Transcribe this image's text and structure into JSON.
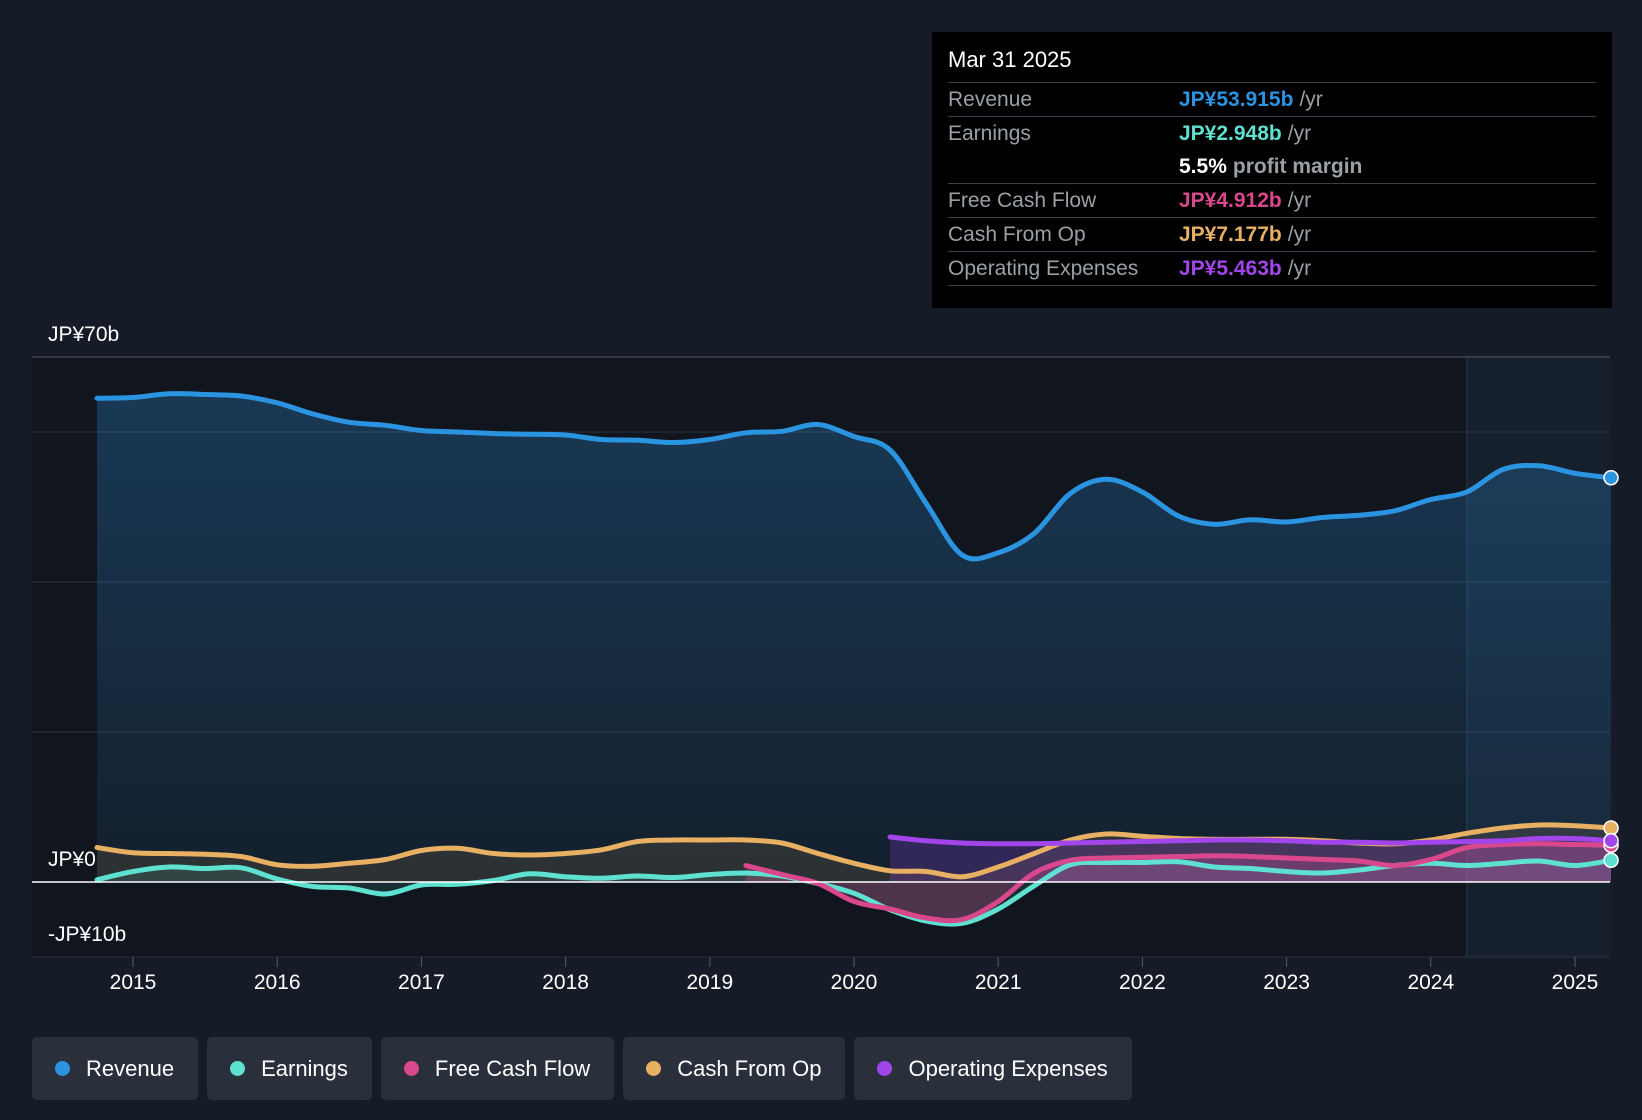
{
  "tooltip": {
    "date": "Mar 31 2025",
    "rows": [
      {
        "label": "Revenue",
        "value": "JP¥53.915b",
        "unit": "/yr",
        "color": "#2b94e1"
      },
      {
        "label": "Earnings",
        "value": "JP¥2.948b",
        "unit": "/yr",
        "color": "#5ee1d0"
      },
      {
        "label": "",
        "value": "5.5%",
        "unit": "profit margin",
        "color": "#ffffff"
      },
      {
        "label": "Free Cash Flow",
        "value": "JP¥4.912b",
        "unit": "/yr",
        "color": "#d9488c"
      },
      {
        "label": "Cash From Op",
        "value": "JP¥7.177b",
        "unit": "/yr",
        "color": "#e8b063"
      },
      {
        "label": "Operating Expenses",
        "value": "JP¥5.463b",
        "unit": "/yr",
        "color": "#a246ec"
      }
    ]
  },
  "legend": [
    {
      "label": "Revenue",
      "color": "#2b94e1"
    },
    {
      "label": "Earnings",
      "color": "#5ee1d0"
    },
    {
      "label": "Free Cash Flow",
      "color": "#d9488c"
    },
    {
      "label": "Cash From Op",
      "color": "#e8b063"
    },
    {
      "label": "Operating Expenses",
      "color": "#a246ec"
    }
  ],
  "chart_data": {
    "type": "line",
    "title": "",
    "xlabel": "",
    "ylabel": "",
    "ylim": [
      -10,
      70
    ],
    "xlim": [
      2014.75,
      2025.25
    ],
    "y_tick_labels": [
      {
        "value": 70,
        "label": "JP¥70b"
      },
      {
        "value": 0,
        "label": "JP¥0"
      },
      {
        "value": -10,
        "label": "-JP¥10b"
      }
    ],
    "x_ticks": [
      2015,
      2016,
      2017,
      2018,
      2019,
      2020,
      2021,
      2022,
      2023,
      2024,
      2025
    ],
    "x_tick_labels": [
      "2015",
      "2016",
      "2017",
      "2018",
      "2019",
      "2020",
      "2021",
      "2022",
      "2023",
      "2024",
      "2025"
    ],
    "highlight_from": 2024.25,
    "series": [
      {
        "name": "Revenue",
        "color": "#2b94e1",
        "fill": true,
        "x": [
          2014.75,
          2015.0,
          2015.25,
          2015.5,
          2015.75,
          2016.0,
          2016.25,
          2016.5,
          2016.75,
          2017.0,
          2017.25,
          2017.5,
          2017.75,
          2018.0,
          2018.25,
          2018.5,
          2018.75,
          2019.0,
          2019.25,
          2019.5,
          2019.75,
          2020.0,
          2020.25,
          2020.5,
          2020.75,
          2021.0,
          2021.25,
          2021.5,
          2021.75,
          2022.0,
          2022.25,
          2022.5,
          2022.75,
          2023.0,
          2023.25,
          2023.5,
          2023.75,
          2024.0,
          2024.25,
          2024.5,
          2024.75,
          2025.0,
          2025.25
        ],
        "values": [
          64.5,
          64.6,
          65.1,
          65.0,
          64.8,
          63.9,
          62.4,
          61.3,
          60.9,
          60.2,
          60.0,
          59.8,
          59.7,
          59.6,
          59.0,
          58.9,
          58.6,
          59.0,
          59.9,
          60.1,
          61.0,
          59.4,
          57.6,
          50.5,
          43.6,
          43.9,
          46.5,
          51.8,
          53.7,
          52.0,
          48.8,
          47.7,
          48.3,
          48.0,
          48.6,
          48.9,
          49.5,
          51.0,
          52.0,
          55.0,
          55.5,
          54.5,
          53.9
        ]
      },
      {
        "name": "Earnings",
        "color": "#5ee1d0",
        "fill": true,
        "x": [
          2014.75,
          2015.0,
          2015.25,
          2015.5,
          2015.75,
          2016.0,
          2016.25,
          2016.5,
          2016.75,
          2017.0,
          2017.25,
          2017.5,
          2017.75,
          2018.0,
          2018.25,
          2018.5,
          2018.75,
          2019.0,
          2019.25,
          2019.5,
          2019.75,
          2020.0,
          2020.25,
          2020.5,
          2020.75,
          2021.0,
          2021.25,
          2021.5,
          2021.75,
          2022.0,
          2022.25,
          2022.5,
          2022.75,
          2023.0,
          2023.25,
          2023.5,
          2023.75,
          2024.0,
          2024.25,
          2024.5,
          2024.75,
          2025.0,
          2025.25
        ],
        "values": [
          0.3,
          1.4,
          2.0,
          1.8,
          1.9,
          0.4,
          -0.6,
          -0.8,
          -1.6,
          -0.4,
          -0.3,
          0.2,
          1.1,
          0.7,
          0.5,
          0.8,
          0.6,
          1.0,
          1.2,
          0.8,
          -0.2,
          -1.5,
          -3.7,
          -5.2,
          -5.5,
          -3.6,
          -0.5,
          2.3,
          2.6,
          2.6,
          2.7,
          2.0,
          1.8,
          1.4,
          1.2,
          1.6,
          2.2,
          2.5,
          2.2,
          2.5,
          2.8,
          2.2,
          2.9
        ]
      },
      {
        "name": "Free Cash Flow",
        "color": "#d9488c",
        "fill": true,
        "x": [
          2019.25,
          2019.5,
          2019.75,
          2020.0,
          2020.25,
          2020.5,
          2020.75,
          2021.0,
          2021.25,
          2021.5,
          2021.75,
          2022.0,
          2022.25,
          2022.5,
          2022.75,
          2023.0,
          2023.25,
          2023.5,
          2023.75,
          2024.0,
          2024.25,
          2024.5,
          2024.75,
          2025.0,
          2025.25
        ],
        "values": [
          2.2,
          1.0,
          -0.2,
          -2.6,
          -3.6,
          -4.8,
          -5.0,
          -2.6,
          1.2,
          2.9,
          3.2,
          3.3,
          3.4,
          3.5,
          3.4,
          3.2,
          3.0,
          2.8,
          2.2,
          3.0,
          4.6,
          5.0,
          5.1,
          5.0,
          4.9
        ]
      },
      {
        "name": "Cash From Op",
        "color": "#e8b063",
        "fill": true,
        "x": [
          2014.75,
          2015.0,
          2015.25,
          2015.5,
          2015.75,
          2016.0,
          2016.25,
          2016.5,
          2016.75,
          2017.0,
          2017.25,
          2017.5,
          2017.75,
          2018.0,
          2018.25,
          2018.5,
          2018.75,
          2019.0,
          2019.25,
          2019.5,
          2019.75,
          2020.0,
          2020.25,
          2020.5,
          2020.75,
          2021.0,
          2021.25,
          2021.5,
          2021.75,
          2022.0,
          2022.25,
          2022.5,
          2022.75,
          2023.0,
          2023.25,
          2023.5,
          2023.75,
          2024.0,
          2024.25,
          2024.5,
          2024.75,
          2025.0,
          2025.25
        ],
        "values": [
          4.6,
          3.9,
          3.8,
          3.7,
          3.4,
          2.3,
          2.1,
          2.5,
          3.0,
          4.2,
          4.5,
          3.8,
          3.6,
          3.8,
          4.3,
          5.4,
          5.6,
          5.6,
          5.6,
          5.2,
          3.8,
          2.5,
          1.5,
          1.4,
          0.7,
          2.0,
          3.8,
          5.6,
          6.4,
          6.1,
          5.8,
          5.7,
          5.7,
          5.7,
          5.5,
          5.2,
          5.1,
          5.6,
          6.5,
          7.2,
          7.6,
          7.5,
          7.2
        ]
      },
      {
        "name": "Operating Expenses",
        "color": "#a246ec",
        "fill": true,
        "x": [
          2020.25,
          2020.5,
          2020.75,
          2021.0,
          2021.25,
          2021.5,
          2021.75,
          2022.0,
          2022.25,
          2022.5,
          2022.75,
          2023.0,
          2023.25,
          2023.5,
          2023.75,
          2024.0,
          2024.25,
          2024.5,
          2024.75,
          2025.0,
          2025.25
        ],
        "values": [
          6.0,
          5.5,
          5.2,
          5.1,
          5.1,
          5.2,
          5.3,
          5.4,
          5.5,
          5.6,
          5.6,
          5.5,
          5.3,
          5.3,
          5.2,
          5.3,
          5.4,
          5.5,
          5.8,
          5.8,
          5.5
        ]
      }
    ]
  }
}
